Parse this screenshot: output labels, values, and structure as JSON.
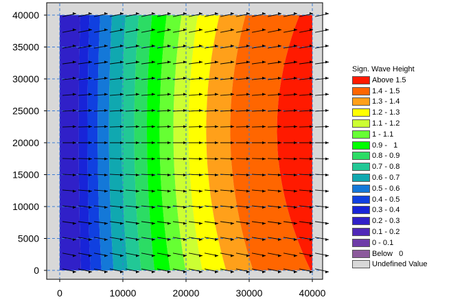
{
  "chart_data": {
    "type": "heatmap",
    "title": "",
    "xlabel": "",
    "ylabel": "",
    "xlim": [
      -2000,
      42000
    ],
    "ylim": [
      -2000,
      42000
    ],
    "x_ticks": [
      0,
      10000,
      20000,
      30000,
      40000
    ],
    "y_ticks": [
      0,
      5000,
      10000,
      15000,
      20000,
      25000,
      30000,
      35000,
      40000
    ],
    "x_tick_labels": [
      "0",
      "10000",
      "20000",
      "30000",
      "40000"
    ],
    "y_tick_labels": [
      "0",
      "5000",
      "10000",
      "15000",
      "20000",
      "25000",
      "30000",
      "35000",
      "40000"
    ],
    "grid": true,
    "data_extent": {
      "x": [
        0,
        40000
      ],
      "y": [
        0,
        40000
      ]
    },
    "field": "Sign. Wave Height",
    "values_description": "Significant wave height increases from about 0.2 at x=0 to above 1.5 near x=36000-40000; contours curve so values are highest at mid y.",
    "vectors": {
      "direction": "eastward, slightly upward toward top edge",
      "spacing": 2500
    },
    "legend": {
      "title": "Sign. Wave Height",
      "placement": "right",
      "entries": [
        {
          "label": "Above 1.5",
          "color": "#ff1a00"
        },
        {
          "label": "1.4 - 1.5",
          "color": "#ff6600"
        },
        {
          "label": "1.3 - 1.4",
          "color": "#ffa01a"
        },
        {
          "label": "1.2 - 1.3",
          "color": "#ffff00"
        },
        {
          "label": "1.1 - 1.2",
          "color": "#ccff33"
        },
        {
          "label": "1 - 1.1",
          "color": "#66ff33"
        },
        {
          "label": "0.9 -   1",
          "color": "#00ff00"
        },
        {
          "label": "0.8 - 0.9",
          "color": "#2cdc64"
        },
        {
          "label": "0.7 - 0.8",
          "color": "#22c896"
        },
        {
          "label": "0.6 - 0.7",
          "color": "#10a8b0"
        },
        {
          "label": "0.5 - 0.6",
          "color": "#1478d8"
        },
        {
          "label": "0.4 - 0.5",
          "color": "#1040e0"
        },
        {
          "label": "0.3 - 0.4",
          "color": "#1824d8"
        },
        {
          "label": "0.2 - 0.3",
          "color": "#3020c8"
        },
        {
          "label": "0.1 - 0.2",
          "color": "#5028b8"
        },
        {
          "label": "0 - 0.1",
          "color": "#6e3ca8"
        },
        {
          "label": "Below   0",
          "color": "#8c5a9c"
        },
        {
          "label": "Undefined Value",
          "color": "#d8d8d8"
        }
      ]
    }
  }
}
